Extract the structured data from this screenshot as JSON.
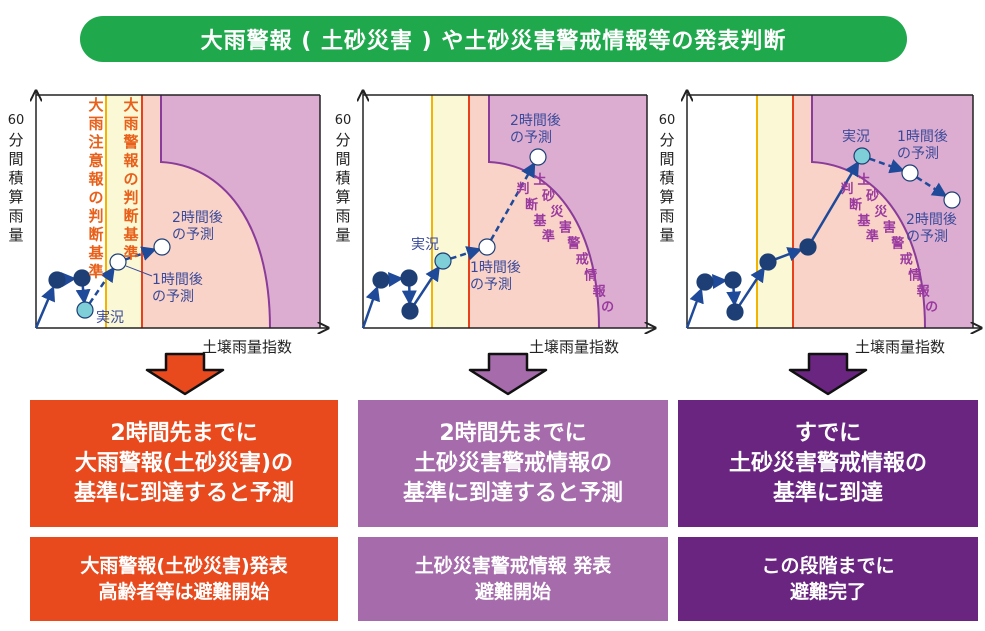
{
  "title": "大雨警報 ( 土砂災害 ) や土砂災害警戒情報等の発表判断",
  "axis": {
    "y": "60分間積算雨量",
    "x": "土壌雨量指数"
  },
  "colors": {
    "title": "#1fa84c",
    "orange": "#e8491d",
    "purple_mid": "#a56bab",
    "purple_dark": "#6a2581",
    "yellow_band": "#fbf8d6",
    "pink_zone": "#f9d2c8",
    "purple_zone": "#dcadd0",
    "point_dark": "#1d3f75",
    "point_now": "#7fcfd8"
  },
  "panels": [
    {
      "label_advisory": "大雨注意報の判断基準",
      "label_warning": "大雨警報の判断基準",
      "now": "実況",
      "h1": "1時間後\nの予測",
      "h2": "2時間後\nの予測"
    },
    {
      "now": "実況",
      "h1": "1時間後\nの予測",
      "h2": "2時間後\nの予測",
      "label_sediment": "土砂災害警戒情報の判断基準"
    },
    {
      "now": "実況",
      "h1": "1時間後\nの予測",
      "h2": "2時間後\nの予測",
      "label_sediment": "土砂災害警戒情報の判断基準"
    }
  ],
  "boxes": [
    {
      "main": "2時間先までに\n大雨警報(土砂災害)の\n基準に到達すると予測",
      "action": "大雨警報(土砂災害)発表\n高齢者等は避難開始"
    },
    {
      "main": "2時間先までに\n土砂災害警戒情報の\n基準に到達すると予測",
      "action": "土砂災害警戒情報 発表\n避難開始"
    },
    {
      "main": "すでに\n土砂災害警戒情報の\n基準に到達",
      "action": "この段階までに\n避難完了"
    }
  ]
}
